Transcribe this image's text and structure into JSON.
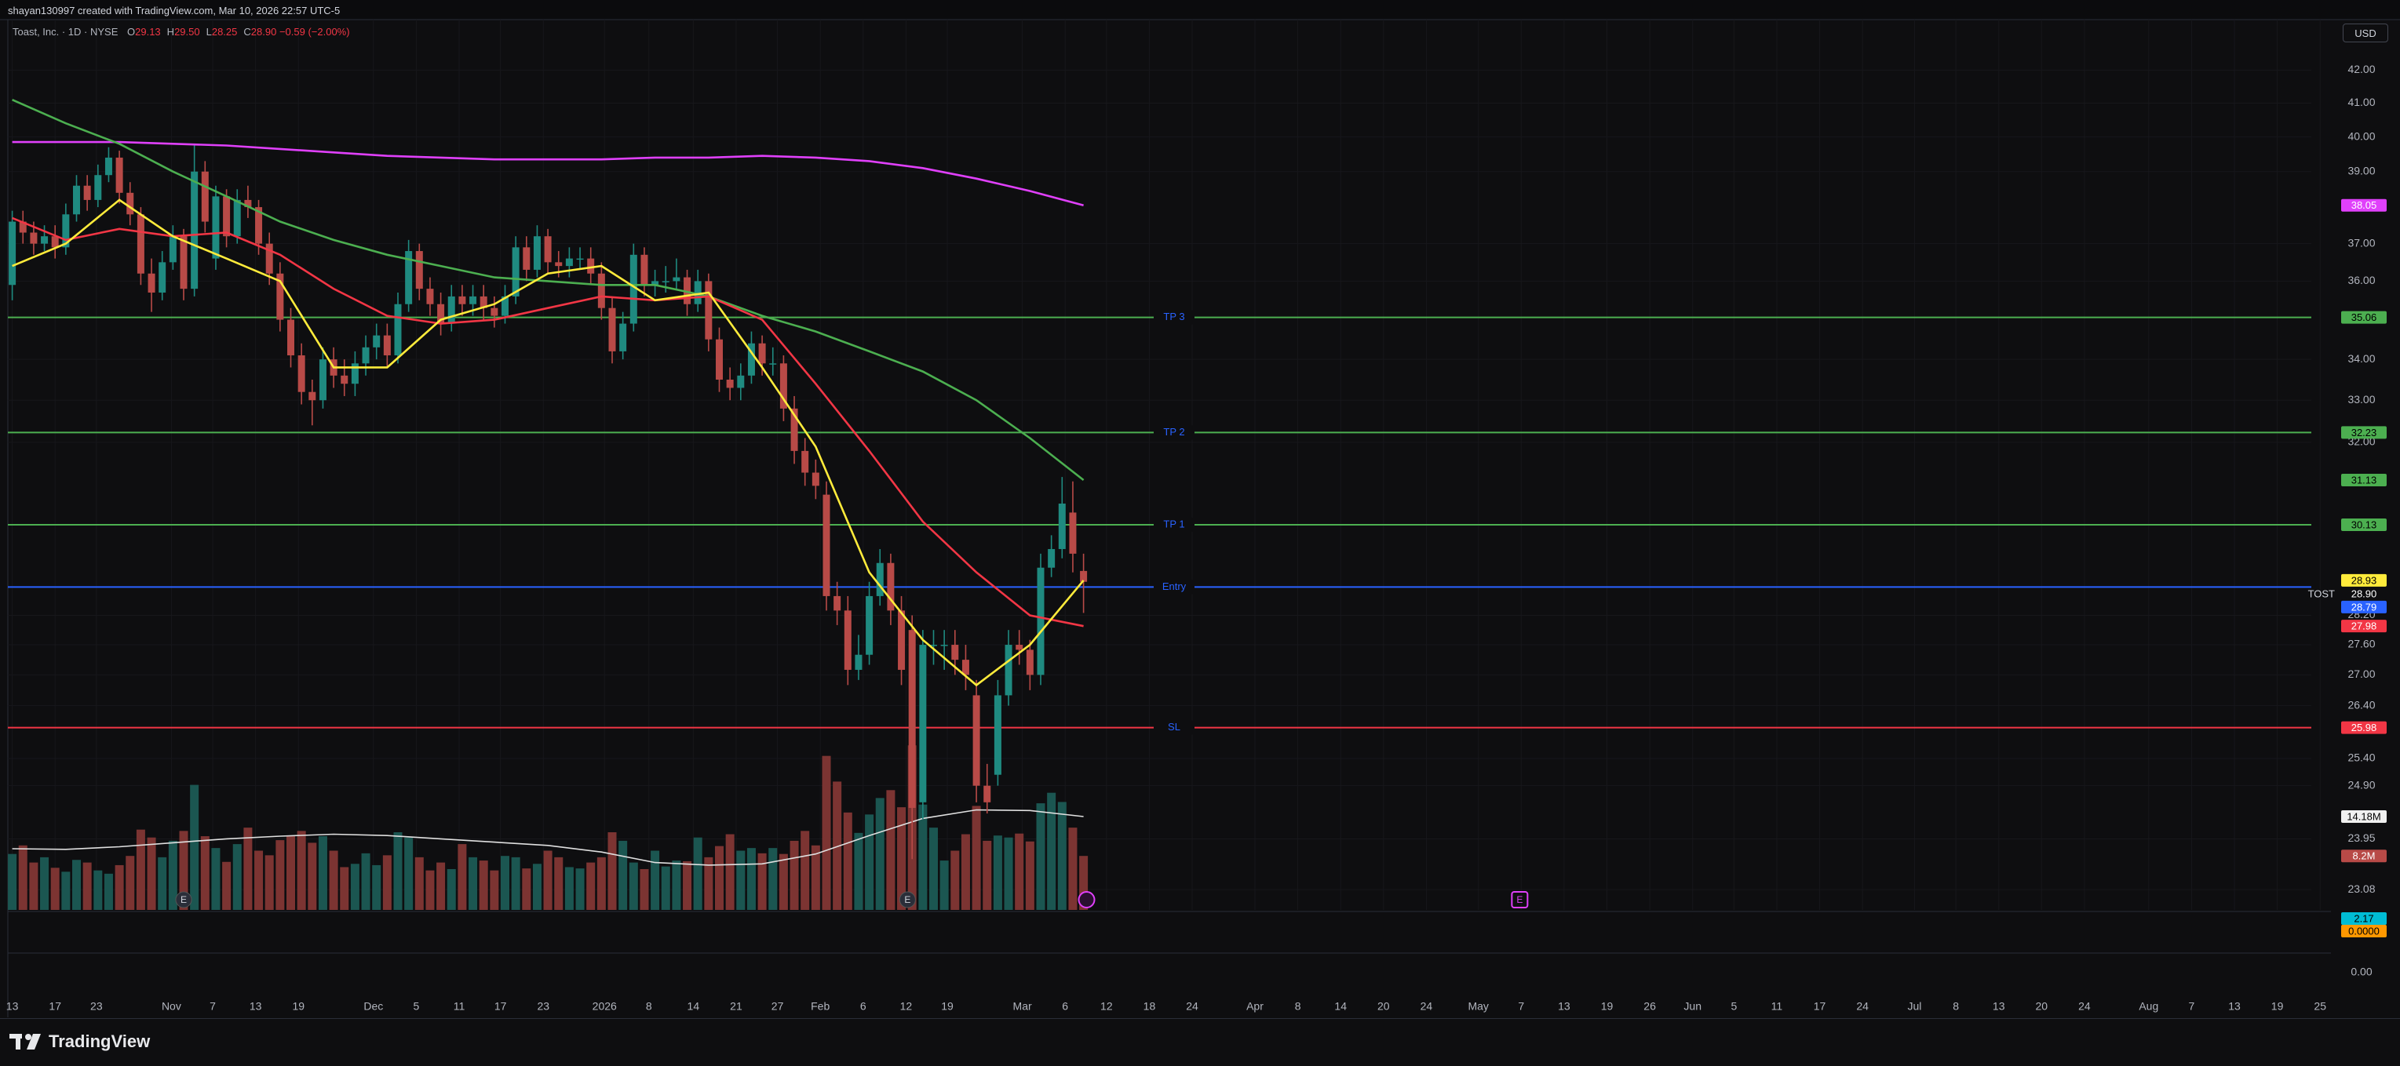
{
  "header": {
    "attribution": "shayan130997 created with TradingView.com, Mar 10, 2026 22:57 UTC-5",
    "symbol": "Toast, Inc. · 1D · NYSE",
    "ohlc": [
      {
        "label": "O",
        "value": "29.13"
      },
      {
        "label": "H",
        "value": "29.50"
      },
      {
        "label": "L",
        "value": "28.25"
      },
      {
        "label": "C",
        "value": "28.90"
      }
    ],
    "change": "−0.59 (−2.00%)",
    "currency": "USD"
  },
  "chart_data": {
    "type": "candlestick",
    "log_scale": true,
    "grid": true,
    "ylim": [
      22.74,
      43.58
    ],
    "yticks": [
      {
        "value": 42,
        "label": "42.00"
      },
      {
        "value": 41,
        "label": "41.00"
      },
      {
        "value": 40,
        "label": "40.00"
      },
      {
        "value": 39,
        "label": "39.00"
      },
      {
        "value": 37,
        "label": "37.00"
      },
      {
        "value": 36,
        "label": "36.00"
      },
      {
        "value": 34,
        "label": "34.00"
      },
      {
        "value": 33,
        "label": "33.00"
      },
      {
        "value": 32,
        "label": "32.00"
      },
      {
        "value": 28.2,
        "label": "28.20"
      },
      {
        "value": 27.6,
        "label": "27.60"
      },
      {
        "value": 27,
        "label": "27.00"
      },
      {
        "value": 26.4,
        "label": "26.40"
      },
      {
        "value": 25.4,
        "label": "25.40"
      },
      {
        "value": 24.9,
        "label": "24.90"
      },
      {
        "value": 23.95,
        "label": "23.95"
      },
      {
        "value": 23.08,
        "label": "23.08"
      }
    ],
    "x_labels": [
      "13",
      "17",
      "23",
      "Nov",
      "7",
      "13",
      "19",
      "Dec",
      "5",
      "11",
      "17",
      "23",
      "2026",
      "8",
      "14",
      "21",
      "27",
      "Feb",
      "6",
      "12",
      "19",
      "Mar",
      "6",
      "12",
      "18",
      "24",
      "Apr",
      "8",
      "14",
      "20",
      "24",
      "May",
      "7",
      "13",
      "19",
      "26",
      "Jun",
      "5",
      "11",
      "17",
      "24",
      "Jul",
      "8",
      "13",
      "20",
      "24",
      "Aug",
      "7",
      "13",
      "19",
      "25"
    ],
    "ohlc": [
      [
        35.9,
        37.9,
        35.5,
        37.6
      ],
      [
        37.6,
        37.9,
        37.0,
        37.3
      ],
      [
        37.3,
        37.6,
        36.7,
        37.0
      ],
      [
        37.0,
        37.5,
        36.8,
        37.2
      ],
      [
        37.2,
        37.5,
        36.6,
        36.9
      ],
      [
        36.9,
        38.1,
        36.7,
        37.8
      ],
      [
        37.8,
        38.9,
        37.6,
        38.6
      ],
      [
        38.6,
        38.9,
        37.9,
        38.2
      ],
      [
        38.2,
        39.2,
        38.0,
        38.9
      ],
      [
        38.9,
        39.7,
        38.7,
        39.4
      ],
      [
        39.4,
        39.6,
        38.1,
        38.4
      ],
      [
        38.4,
        38.7,
        37.5,
        37.8
      ],
      [
        37.8,
        38.0,
        35.9,
        36.2
      ],
      [
        36.2,
        36.6,
        35.2,
        35.7
      ],
      [
        35.7,
        36.8,
        35.5,
        36.5
      ],
      [
        36.5,
        37.5,
        36.3,
        37.2
      ],
      [
        37.2,
        37.4,
        35.5,
        35.8
      ],
      [
        35.8,
        39.8,
        35.6,
        39.0
      ],
      [
        39.0,
        39.3,
        37.3,
        37.6
      ],
      [
        36.6,
        38.6,
        36.3,
        38.3
      ],
      [
        38.3,
        38.5,
        36.9,
        37.2
      ],
      [
        37.2,
        38.5,
        37.0,
        38.2
      ],
      [
        38.2,
        38.6,
        37.7,
        38.0
      ],
      [
        38.0,
        38.2,
        36.7,
        37.0
      ],
      [
        37.0,
        37.3,
        35.9,
        36.2
      ],
      [
        36.2,
        36.5,
        34.7,
        35.0
      ],
      [
        35.0,
        35.3,
        33.8,
        34.1
      ],
      [
        34.1,
        34.4,
        32.9,
        33.2
      ],
      [
        33.2,
        33.5,
        32.4,
        33.0
      ],
      [
        33.0,
        34.3,
        32.8,
        34.0
      ],
      [
        34.0,
        34.3,
        33.3,
        33.6
      ],
      [
        33.6,
        34.0,
        33.1,
        33.4
      ],
      [
        33.4,
        34.2,
        33.1,
        33.9
      ],
      [
        33.9,
        34.6,
        33.6,
        34.3
      ],
      [
        34.3,
        34.9,
        34.0,
        34.6
      ],
      [
        34.6,
        34.9,
        33.8,
        34.1
      ],
      [
        34.1,
        35.7,
        33.9,
        35.4
      ],
      [
        35.4,
        37.1,
        35.2,
        36.8
      ],
      [
        36.8,
        37.0,
        35.5,
        35.8
      ],
      [
        35.8,
        36.1,
        35.1,
        35.4
      ],
      [
        35.4,
        35.7,
        34.6,
        34.9
      ],
      [
        34.9,
        35.9,
        34.7,
        35.6
      ],
      [
        35.6,
        35.9,
        35.1,
        35.4
      ],
      [
        35.4,
        35.9,
        35.1,
        35.6
      ],
      [
        35.6,
        35.9,
        35.0,
        35.3
      ],
      [
        35.3,
        35.6,
        34.8,
        35.1
      ],
      [
        35.1,
        35.9,
        34.9,
        35.6
      ],
      [
        35.6,
        37.2,
        35.4,
        36.9
      ],
      [
        36.9,
        37.2,
        36.0,
        36.3
      ],
      [
        36.3,
        37.5,
        36.1,
        37.2
      ],
      [
        37.2,
        37.4,
        36.2,
        36.5
      ],
      [
        36.5,
        36.8,
        36.1,
        36.4
      ],
      [
        36.4,
        36.9,
        36.1,
        36.6
      ],
      [
        36.6,
        36.9,
        36.3,
        36.6
      ],
      [
        36.6,
        36.9,
        35.9,
        36.2
      ],
      [
        36.2,
        36.5,
        35.0,
        35.3
      ],
      [
        35.3,
        35.6,
        33.9,
        34.2
      ],
      [
        34.2,
        35.2,
        34.0,
        34.9
      ],
      [
        34.9,
        37.0,
        34.7,
        36.7
      ],
      [
        36.7,
        36.9,
        35.6,
        35.9
      ],
      [
        35.9,
        36.3,
        35.6,
        36.0
      ],
      [
        36.0,
        36.4,
        35.7,
        36.0
      ],
      [
        36.0,
        36.6,
        35.8,
        36.1
      ],
      [
        36.1,
        36.3,
        35.1,
        35.4
      ],
      [
        35.4,
        36.3,
        35.2,
        36.0
      ],
      [
        36.0,
        36.2,
        34.2,
        34.5
      ],
      [
        34.5,
        34.8,
        33.2,
        33.5
      ],
      [
        33.5,
        33.8,
        33.0,
        33.3
      ],
      [
        33.3,
        33.9,
        33.0,
        33.6
      ],
      [
        33.6,
        34.7,
        33.4,
        34.4
      ],
      [
        34.4,
        34.6,
        33.6,
        33.9
      ],
      [
        33.9,
        34.3,
        33.6,
        33.9
      ],
      [
        33.9,
        34.1,
        32.5,
        32.8
      ],
      [
        32.8,
        33.1,
        31.5,
        31.8
      ],
      [
        31.8,
        32.1,
        31.0,
        31.3
      ],
      [
        31.3,
        31.6,
        30.7,
        31.0
      ],
      [
        30.8,
        31.1,
        28.3,
        28.6
      ],
      [
        28.6,
        28.9,
        28.0,
        28.3
      ],
      [
        28.3,
        28.6,
        26.8,
        27.1
      ],
      [
        27.1,
        27.8,
        26.9,
        27.4
      ],
      [
        27.4,
        28.9,
        27.2,
        28.6
      ],
      [
        28.6,
        29.6,
        28.4,
        29.3
      ],
      [
        29.3,
        29.5,
        28.0,
        28.3
      ],
      [
        28.3,
        28.6,
        26.8,
        27.1
      ],
      [
        27.9,
        28.2,
        23.6,
        24.5
      ],
      [
        24.6,
        27.9,
        24.3,
        27.6
      ],
      [
        27.6,
        27.9,
        27.2,
        27.6
      ],
      [
        27.6,
        27.9,
        27.1,
        27.6
      ],
      [
        27.6,
        27.9,
        27.0,
        27.3
      ],
      [
        27.3,
        27.6,
        26.7,
        27.0
      ],
      [
        26.6,
        26.9,
        24.6,
        24.9
      ],
      [
        24.9,
        25.3,
        24.4,
        24.6
      ],
      [
        25.1,
        26.9,
        24.9,
        26.6
      ],
      [
        26.6,
        27.9,
        26.4,
        27.6
      ],
      [
        27.6,
        27.9,
        27.2,
        27.5
      ],
      [
        27.5,
        27.7,
        26.7,
        27.0
      ],
      [
        27.0,
        29.5,
        26.8,
        29.2
      ],
      [
        29.2,
        29.9,
        29.0,
        29.6
      ],
      [
        29.6,
        31.2,
        29.4,
        30.6
      ],
      [
        30.4,
        31.1,
        29.1,
        29.5
      ],
      [
        29.13,
        29.5,
        28.25,
        28.9
      ]
    ],
    "up_color": "#1f8a80",
    "down_color": "#b84a47",
    "moving_averages": [
      {
        "color": "#e040fb",
        "values": [
          39.85,
          39.85,
          39.85,
          39.8,
          39.75,
          39.65,
          39.55,
          39.45,
          39.4,
          39.35,
          39.35,
          39.35,
          39.4,
          39.4,
          39.45,
          39.4,
          39.3,
          39.1,
          38.8,
          38.45,
          38.05
        ]
      },
      {
        "color": "#4caf50",
        "values": [
          41.1,
          40.4,
          39.8,
          39.0,
          38.3,
          37.6,
          37.1,
          36.7,
          36.4,
          36.1,
          36.0,
          35.9,
          35.9,
          35.6,
          35.1,
          34.7,
          34.2,
          33.7,
          33.0,
          32.1,
          31.13
        ]
      },
      {
        "color": "#f23645",
        "values": [
          37.7,
          37.1,
          37.4,
          37.2,
          37.3,
          36.7,
          35.8,
          35.1,
          34.9,
          35.0,
          35.3,
          35.6,
          35.5,
          35.6,
          35.0,
          33.4,
          31.8,
          30.2,
          29.1,
          28.2,
          27.98
        ]
      },
      {
        "color": "#ffeb3b",
        "values": [
          36.4,
          37.0,
          38.2,
          37.2,
          36.6,
          36.0,
          33.8,
          33.8,
          35.0,
          35.4,
          36.2,
          36.4,
          35.5,
          35.7,
          33.8,
          31.9,
          29.1,
          27.7,
          26.8,
          27.6,
          28.93
        ]
      }
    ],
    "levels": [
      {
        "label": "TP 3",
        "value": 35.06,
        "color": "#4caf50"
      },
      {
        "label": "TP 2",
        "value": 32.23,
        "color": "#4caf50"
      },
      {
        "label": "TP 1",
        "value": 30.13,
        "color": "#4caf50"
      },
      {
        "label": "Entry",
        "value": 28.79,
        "color": "#2962ff"
      },
      {
        "label": "SL",
        "value": 25.98,
        "color": "#f23645"
      }
    ],
    "last_price": {
      "ticker": "TOST",
      "value": 28.9,
      "label": "28.90"
    },
    "volume": {
      "values": [
        8.5,
        9.8,
        7.2,
        8.0,
        6.4,
        5.8,
        7.6,
        7.2,
        6.0,
        5.5,
        6.8,
        8.2,
        12.2,
        11.0,
        8.0,
        10.5,
        12.0,
        19.0,
        11.2,
        9.4,
        7.3,
        10.0,
        12.5,
        9.0,
        8.3,
        10.6,
        11.3,
        12.0,
        10.2,
        11.2,
        9.0,
        6.5,
        7.0,
        8.6,
        6.8,
        8.3,
        11.8,
        11.0,
        8.0,
        6.0,
        7.2,
        6.2,
        10.0,
        8.0,
        7.5,
        6.0,
        8.2,
        8.0,
        6.3,
        7.0,
        9.0,
        8.0,
        6.5,
        6.3,
        7.2,
        8.0,
        11.8,
        10.5,
        7.2,
        6.2,
        9.0,
        6.6,
        7.5,
        7.4,
        11.0,
        8.0,
        9.7,
        11.5,
        9.0,
        9.4,
        8.6,
        9.4,
        8.5,
        10.5,
        12.0,
        9.8,
        23.4,
        19.5,
        14.8,
        11.7,
        14.5,
        17.0,
        18.2,
        15.6,
        25.0,
        16.0,
        12.5,
        7.5,
        9.0,
        11.5,
        15.8,
        10.5,
        11.3,
        11.0,
        11.6,
        10.4,
        16.2,
        17.8,
        16.4,
        12.5,
        8.2
      ],
      "last_label": "8.2M",
      "ma": {
        "color": "#e0e0e0",
        "values": [
          9.3,
          9.2,
          9.6,
          10.2,
          10.8,
          11.2,
          11.5,
          11.3,
          10.8,
          10.3,
          9.8,
          8.8,
          7.2,
          6.8,
          7.0,
          8.5,
          11.3,
          13.9,
          15.2,
          15.1,
          14.18
        ],
        "last_label": "14.18M"
      }
    },
    "indicator": {
      "labels": [
        "2.17",
        "0.0000"
      ],
      "tick_label": "0.00"
    },
    "earnings_markers": [
      "E",
      "E",
      "E"
    ]
  },
  "footer": {
    "brand": "TradingView"
  }
}
